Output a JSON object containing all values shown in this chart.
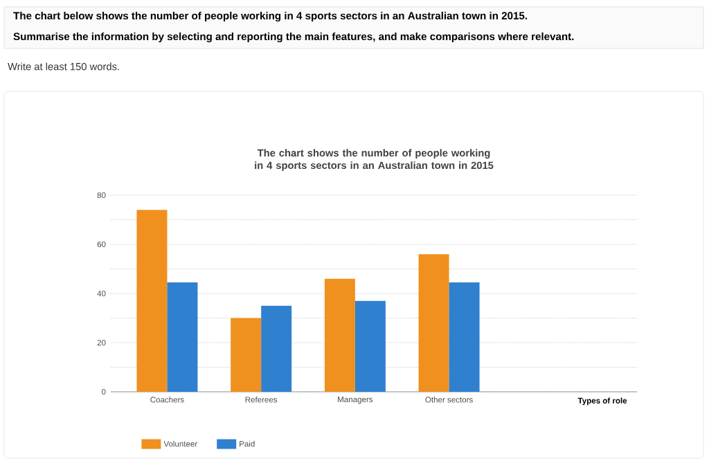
{
  "chart_data": {
    "type": "bar",
    "title": "The chart shows the number of people working in 4 sports sectors in an Australian town in 2015",
    "annotations": [
      "The chart below shows the number of people working in 4 sports sectors in an Australian town in 2015.",
      "Summarise the information by selecting and reporting the main features, and make comparisons where relevant.",
      "Write at least 150 words.",
      "Types of role"
    ],
    "categories": [
      "Coachers",
      "Referees",
      "Managers",
      "Other sectors"
    ],
    "series": [
      {
        "name": "Volunteer",
        "color": "#f0901e",
        "values": [
          74,
          30,
          46,
          56
        ]
      },
      {
        "name": "Paid",
        "color": "#2f80cf",
        "values": [
          44.5,
          35,
          37,
          44.5
        ]
      }
    ],
    "ylim": [
      0,
      80
    ],
    "yticks": [
      0,
      {
        "value": 10,
        "label": null
      },
      20,
      {
        "value": 30,
        "label": null
      },
      40,
      {
        "value": 50,
        "label": null
      },
      60,
      {
        "value": 70,
        "label": null
      },
      80
    ],
    "grid": "y",
    "legend": "bottom left"
  }
}
